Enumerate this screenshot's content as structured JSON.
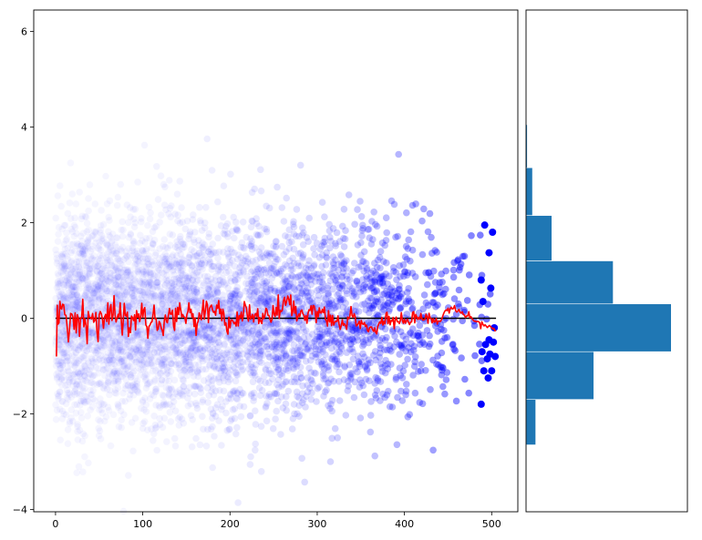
{
  "chart_data": [
    {
      "type": "scatter",
      "title": "",
      "xlabel": "",
      "ylabel": "",
      "xlim": [
        -25,
        530
      ],
      "ylim": [
        -4.05,
        6.45
      ],
      "xticks": [
        0,
        100,
        200,
        300,
        400,
        500
      ],
      "xtick_labels": [
        "0",
        "100",
        "200",
        "300",
        "400",
        "500"
      ],
      "yticks": [
        -4,
        -2,
        0,
        2,
        4,
        6
      ],
      "ytick_labels": [
        "−4",
        "−2",
        "0",
        "2",
        "4",
        "6"
      ],
      "grid": false,
      "legend": "none",
      "colors": {
        "points": "#0000ff",
        "running_mean": "#ff0000",
        "zero_line": "#000000"
      },
      "series": [
        {
          "kind": "scatter",
          "note": "approx. 5000 normal samples N(0,1); opacity increases with x",
          "n_points": 5000,
          "mean": 0,
          "sd": 1,
          "alpha_min": 0.04,
          "alpha_max": 1.0,
          "highlighted_points": [
            {
              "x": 492,
              "y": 1.95
            },
            {
              "x": 501,
              "y": 1.8
            },
            {
              "x": 497,
              "y": 1.37
            },
            {
              "x": 488,
              "y": 0.8
            },
            {
              "x": 499,
              "y": 0.63
            },
            {
              "x": 490,
              "y": 0.35
            },
            {
              "x": 503,
              "y": -0.2
            },
            {
              "x": 497,
              "y": -0.45
            },
            {
              "x": 502,
              "y": -0.5
            },
            {
              "x": 493,
              "y": -0.55
            },
            {
              "x": 489,
              "y": -0.7
            },
            {
              "x": 498,
              "y": -0.75
            },
            {
              "x": 504,
              "y": -0.8
            },
            {
              "x": 495,
              "y": -0.85
            },
            {
              "x": 491,
              "y": -1.1
            },
            {
              "x": 500,
              "y": -1.1
            },
            {
              "x": 496,
              "y": -1.25
            },
            {
              "x": 488,
              "y": -1.8
            }
          ]
        },
        {
          "kind": "line",
          "note": "running mean across x",
          "x": [
            1,
            2,
            3,
            5,
            8,
            12,
            16,
            20,
            25,
            30,
            35,
            40,
            50,
            60,
            80,
            100,
            120,
            140,
            160,
            180,
            200,
            220,
            240,
            260,
            265,
            280,
            300,
            320,
            330,
            340,
            360,
            380,
            400,
            420,
            440,
            450,
            460,
            470,
            480,
            490,
            500,
            505
          ],
          "y": [
            -0.8,
            0.3,
            -0.4,
            0.25,
            -0.1,
            0.15,
            -0.2,
            0.1,
            -0.3,
            0.2,
            -0.25,
            0.05,
            -0.1,
            0.1,
            -0.05,
            0.1,
            -0.05,
            0.1,
            0.0,
            0.12,
            -0.05,
            0.1,
            0.0,
            0.2,
            0.32,
            0.05,
            0.15,
            -0.15,
            -0.1,
            0.05,
            -0.25,
            0.0,
            -0.1,
            0.05,
            -0.1,
            0.15,
            0.18,
            0.05,
            -0.05,
            -0.15,
            -0.2,
            -0.25
          ]
        },
        {
          "kind": "hline",
          "y": 0,
          "x_range": [
            0,
            505
          ]
        }
      ]
    },
    {
      "type": "bar",
      "orientation": "horizontal",
      "note": "marginal histogram of y values",
      "bin_edges": [
        -3.6,
        -2.65,
        -1.7,
        -0.7,
        0.3,
        1.2,
        2.15,
        3.15,
        4.05
      ],
      "counts": [
        2,
        60,
        420,
        900,
        540,
        160,
        40,
        8
      ],
      "xlim": [
        0,
        1000
      ],
      "ylim": [
        -4.05,
        6.45
      ],
      "color": "#1f77b4"
    }
  ]
}
